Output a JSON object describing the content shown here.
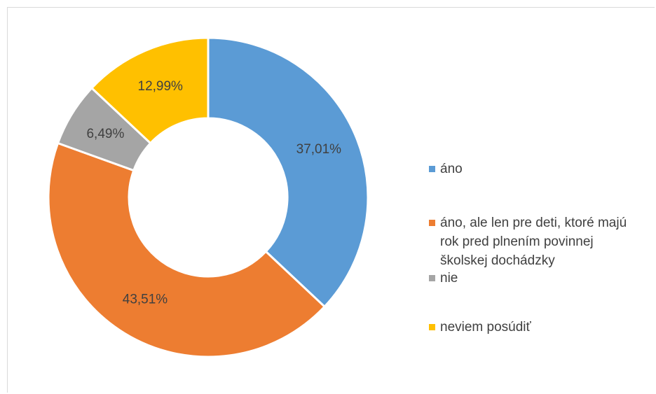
{
  "chart_data": {
    "type": "donut",
    "categories": [
      "áno",
      "áno, ale len pre deti, ktoré majú rok pred plnením povinnej školskej dochádzky",
      "nie",
      "neviem posúdiť"
    ],
    "values": [
      37.01,
      43.51,
      6.49,
      12.99
    ],
    "value_labels": [
      "37,01%",
      "43,51%",
      "6,49%",
      "12,99%"
    ],
    "colors": [
      "#5b9bd5",
      "#ed7d31",
      "#a5a5a5",
      "#ffc000"
    ],
    "legend": "right"
  }
}
